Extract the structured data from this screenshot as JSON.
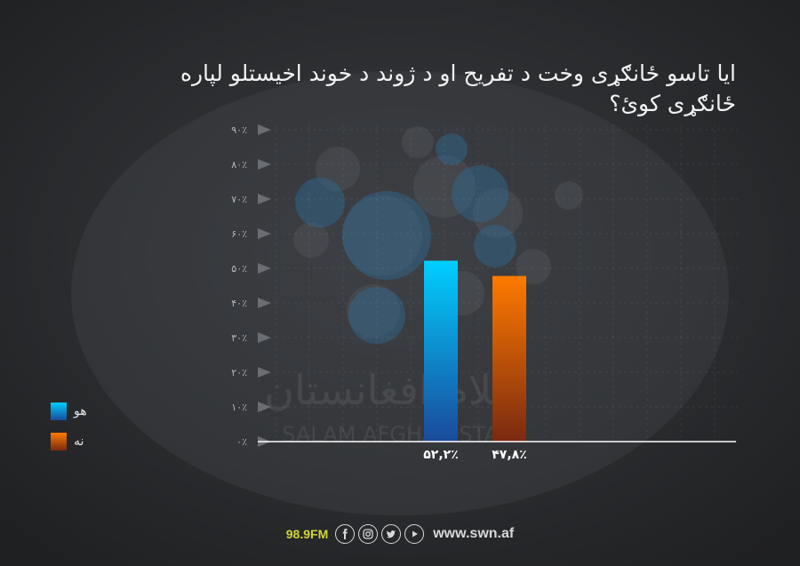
{
  "title": "ایا تاسو ځانګړی وخت د تفریح او د ژوند د خوند اخیستلو لپاره ځانګړی کوئ؟",
  "watermark": {
    "arabic": "سلام افغانستان",
    "latin": "SALAM AFGHANISTAN"
  },
  "footer": {
    "frequency": "98.9FM",
    "website": "www.swn.af",
    "icons": [
      "facebook-icon",
      "instagram-icon",
      "twitter-icon",
      "youtube-icon"
    ]
  },
  "colors": {
    "blue_top": "#00cfff",
    "blue_bottom": "#1a4a9a",
    "orange_top": "#ff7a00",
    "orange_bottom": "#7a2a10"
  },
  "chart_data": {
    "type": "bar",
    "categories": [
      "هو",
      "نه"
    ],
    "values": [
      52.2,
      47.8
    ],
    "value_labels": [
      "۵۲,۲٪",
      "۴۷,۸٪"
    ],
    "yticks": [
      "۰٪",
      "۱۰٪",
      "۲۰٪",
      "۳۰٪",
      "۴۰٪",
      "۵۰٪",
      "۶۰٪",
      "۷۰٪",
      "۸۰٪",
      "۹۰٪"
    ],
    "ylim": [
      0,
      90
    ],
    "legend": [
      {
        "label": "هو",
        "color": "blue"
      },
      {
        "label": "نه",
        "color": "orange"
      }
    ],
    "legend_position": "bottom-left",
    "grid": true
  }
}
